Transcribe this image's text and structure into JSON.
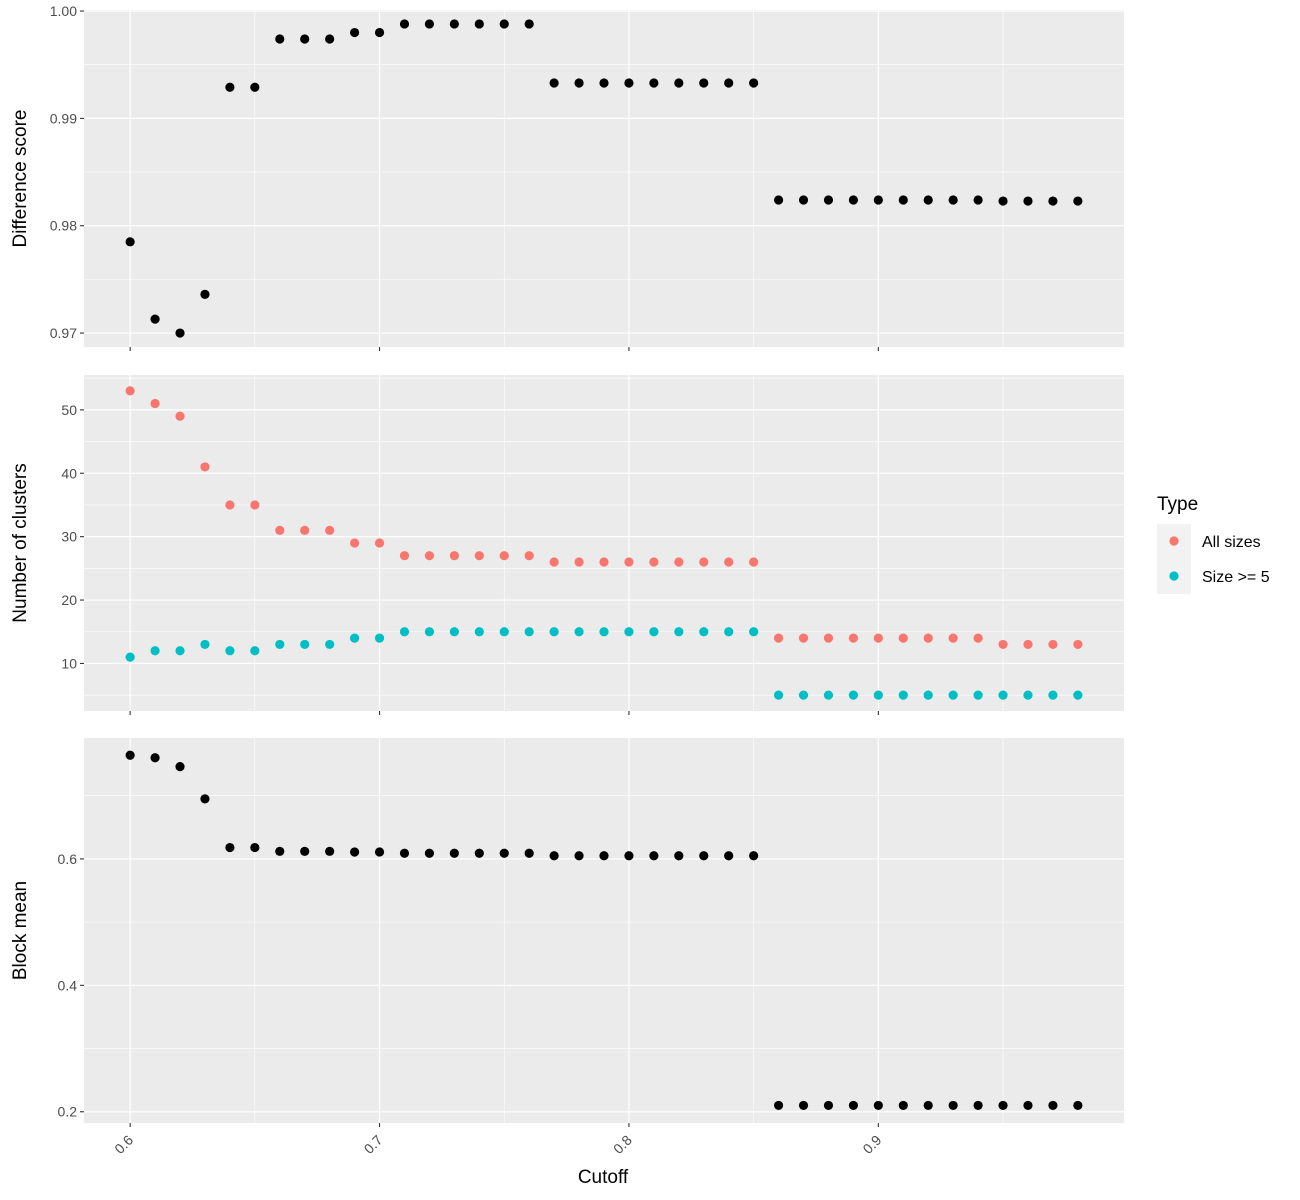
{
  "chart_data": {
    "type": "scatter",
    "x": [
      0.6,
      0.61,
      0.62,
      0.63,
      0.64,
      0.65,
      0.66,
      0.67,
      0.68,
      0.69,
      0.7,
      0.71,
      0.72,
      0.73,
      0.74,
      0.75,
      0.76,
      0.77,
      0.78,
      0.79,
      0.8,
      0.81,
      0.82,
      0.83,
      0.84,
      0.85,
      0.86,
      0.87,
      0.88,
      0.89,
      0.9,
      0.91,
      0.92,
      0.93,
      0.94,
      0.95,
      0.96,
      0.97,
      0.98
    ],
    "xlabel": "Cutoff",
    "xlim": [
      0.5815,
      0.9985
    ],
    "x_ticks": [
      0.6,
      0.7,
      0.8,
      0.9
    ],
    "x_tick_labels": [
      "0.6",
      "0.7",
      "0.8",
      "0.9"
    ],
    "grid": true,
    "background": "#ebebeb",
    "panels": [
      {
        "ylabel": "Difference score",
        "ylim": [
          0.9687,
          1.0001
        ],
        "y_ticks": [
          0.97,
          0.98,
          0.99,
          1.0
        ],
        "y_tick_labels": [
          "0.97",
          "0.98",
          "0.99",
          "1.00"
        ],
        "series": [
          {
            "color": "#000000",
            "values": [
              0.9785,
              0.9713,
              0.97,
              0.9736,
              0.9929,
              0.9929,
              0.9974,
              0.9974,
              0.9974,
              0.998,
              0.998,
              0.9988,
              0.9988,
              0.9988,
              0.9988,
              0.9988,
              0.9988,
              0.9933,
              0.9933,
              0.9933,
              0.9933,
              0.9933,
              0.9933,
              0.9933,
              0.9933,
              0.9933,
              0.9824,
              0.9824,
              0.9824,
              0.9824,
              0.9824,
              0.9824,
              0.9824,
              0.9824,
              0.9824,
              0.9823,
              0.9823,
              0.9823,
              0.9823
            ]
          }
        ]
      },
      {
        "ylabel": "Number of clusters",
        "ylim": [
          2.5,
          55.5
        ],
        "y_ticks": [
          10,
          20,
          30,
          40,
          50
        ],
        "y_tick_labels": [
          "10",
          "20",
          "30",
          "40",
          "50"
        ],
        "series": [
          {
            "name": "All sizes",
            "color": "#f8766d",
            "values": [
              53,
              51,
              49,
              41,
              35,
              35,
              31,
              31,
              31,
              29,
              29,
              27,
              27,
              27,
              27,
              27,
              27,
              26,
              26,
              26,
              26,
              26,
              26,
              26,
              26,
              26,
              14,
              14,
              14,
              14,
              14,
              14,
              14,
              14,
              14,
              13,
              13,
              13,
              13
            ]
          },
          {
            "name": "Size >= 5",
            "color": "#00bfc4",
            "values": [
              11,
              12,
              12,
              13,
              12,
              12,
              13,
              13,
              13,
              14,
              14,
              15,
              15,
              15,
              15,
              15,
              15,
              15,
              15,
              15,
              15,
              15,
              15,
              15,
              15,
              15,
              5,
              5,
              5,
              5,
              5,
              5,
              5,
              5,
              5,
              5,
              5,
              5,
              5
            ]
          }
        ]
      },
      {
        "ylabel": "Block mean",
        "ylim": [
          0.1822,
          0.7913
        ],
        "y_ticks": [
          0.2,
          0.4,
          0.6
        ],
        "y_tick_labels": [
          "0.2",
          "0.4",
          "0.6"
        ],
        "series": [
          {
            "color": "#000000",
            "values": [
              0.764,
              0.76,
              0.746,
              0.695,
              0.618,
              0.618,
              0.612,
              0.612,
              0.612,
              0.611,
              0.611,
              0.609,
              0.609,
              0.609,
              0.609,
              0.609,
              0.609,
              0.605,
              0.605,
              0.605,
              0.605,
              0.605,
              0.605,
              0.605,
              0.605,
              0.605,
              0.21,
              0.21,
              0.21,
              0.21,
              0.21,
              0.21,
              0.21,
              0.21,
              0.21,
              0.21,
              0.21,
              0.21,
              0.21
            ]
          }
        ]
      }
    ],
    "legend": {
      "title": "Type",
      "position": "right",
      "entries": [
        {
          "label": "All sizes",
          "color": "#f8766d"
        },
        {
          "label": "Size >= 5",
          "color": "#00bfc4"
        }
      ]
    }
  }
}
